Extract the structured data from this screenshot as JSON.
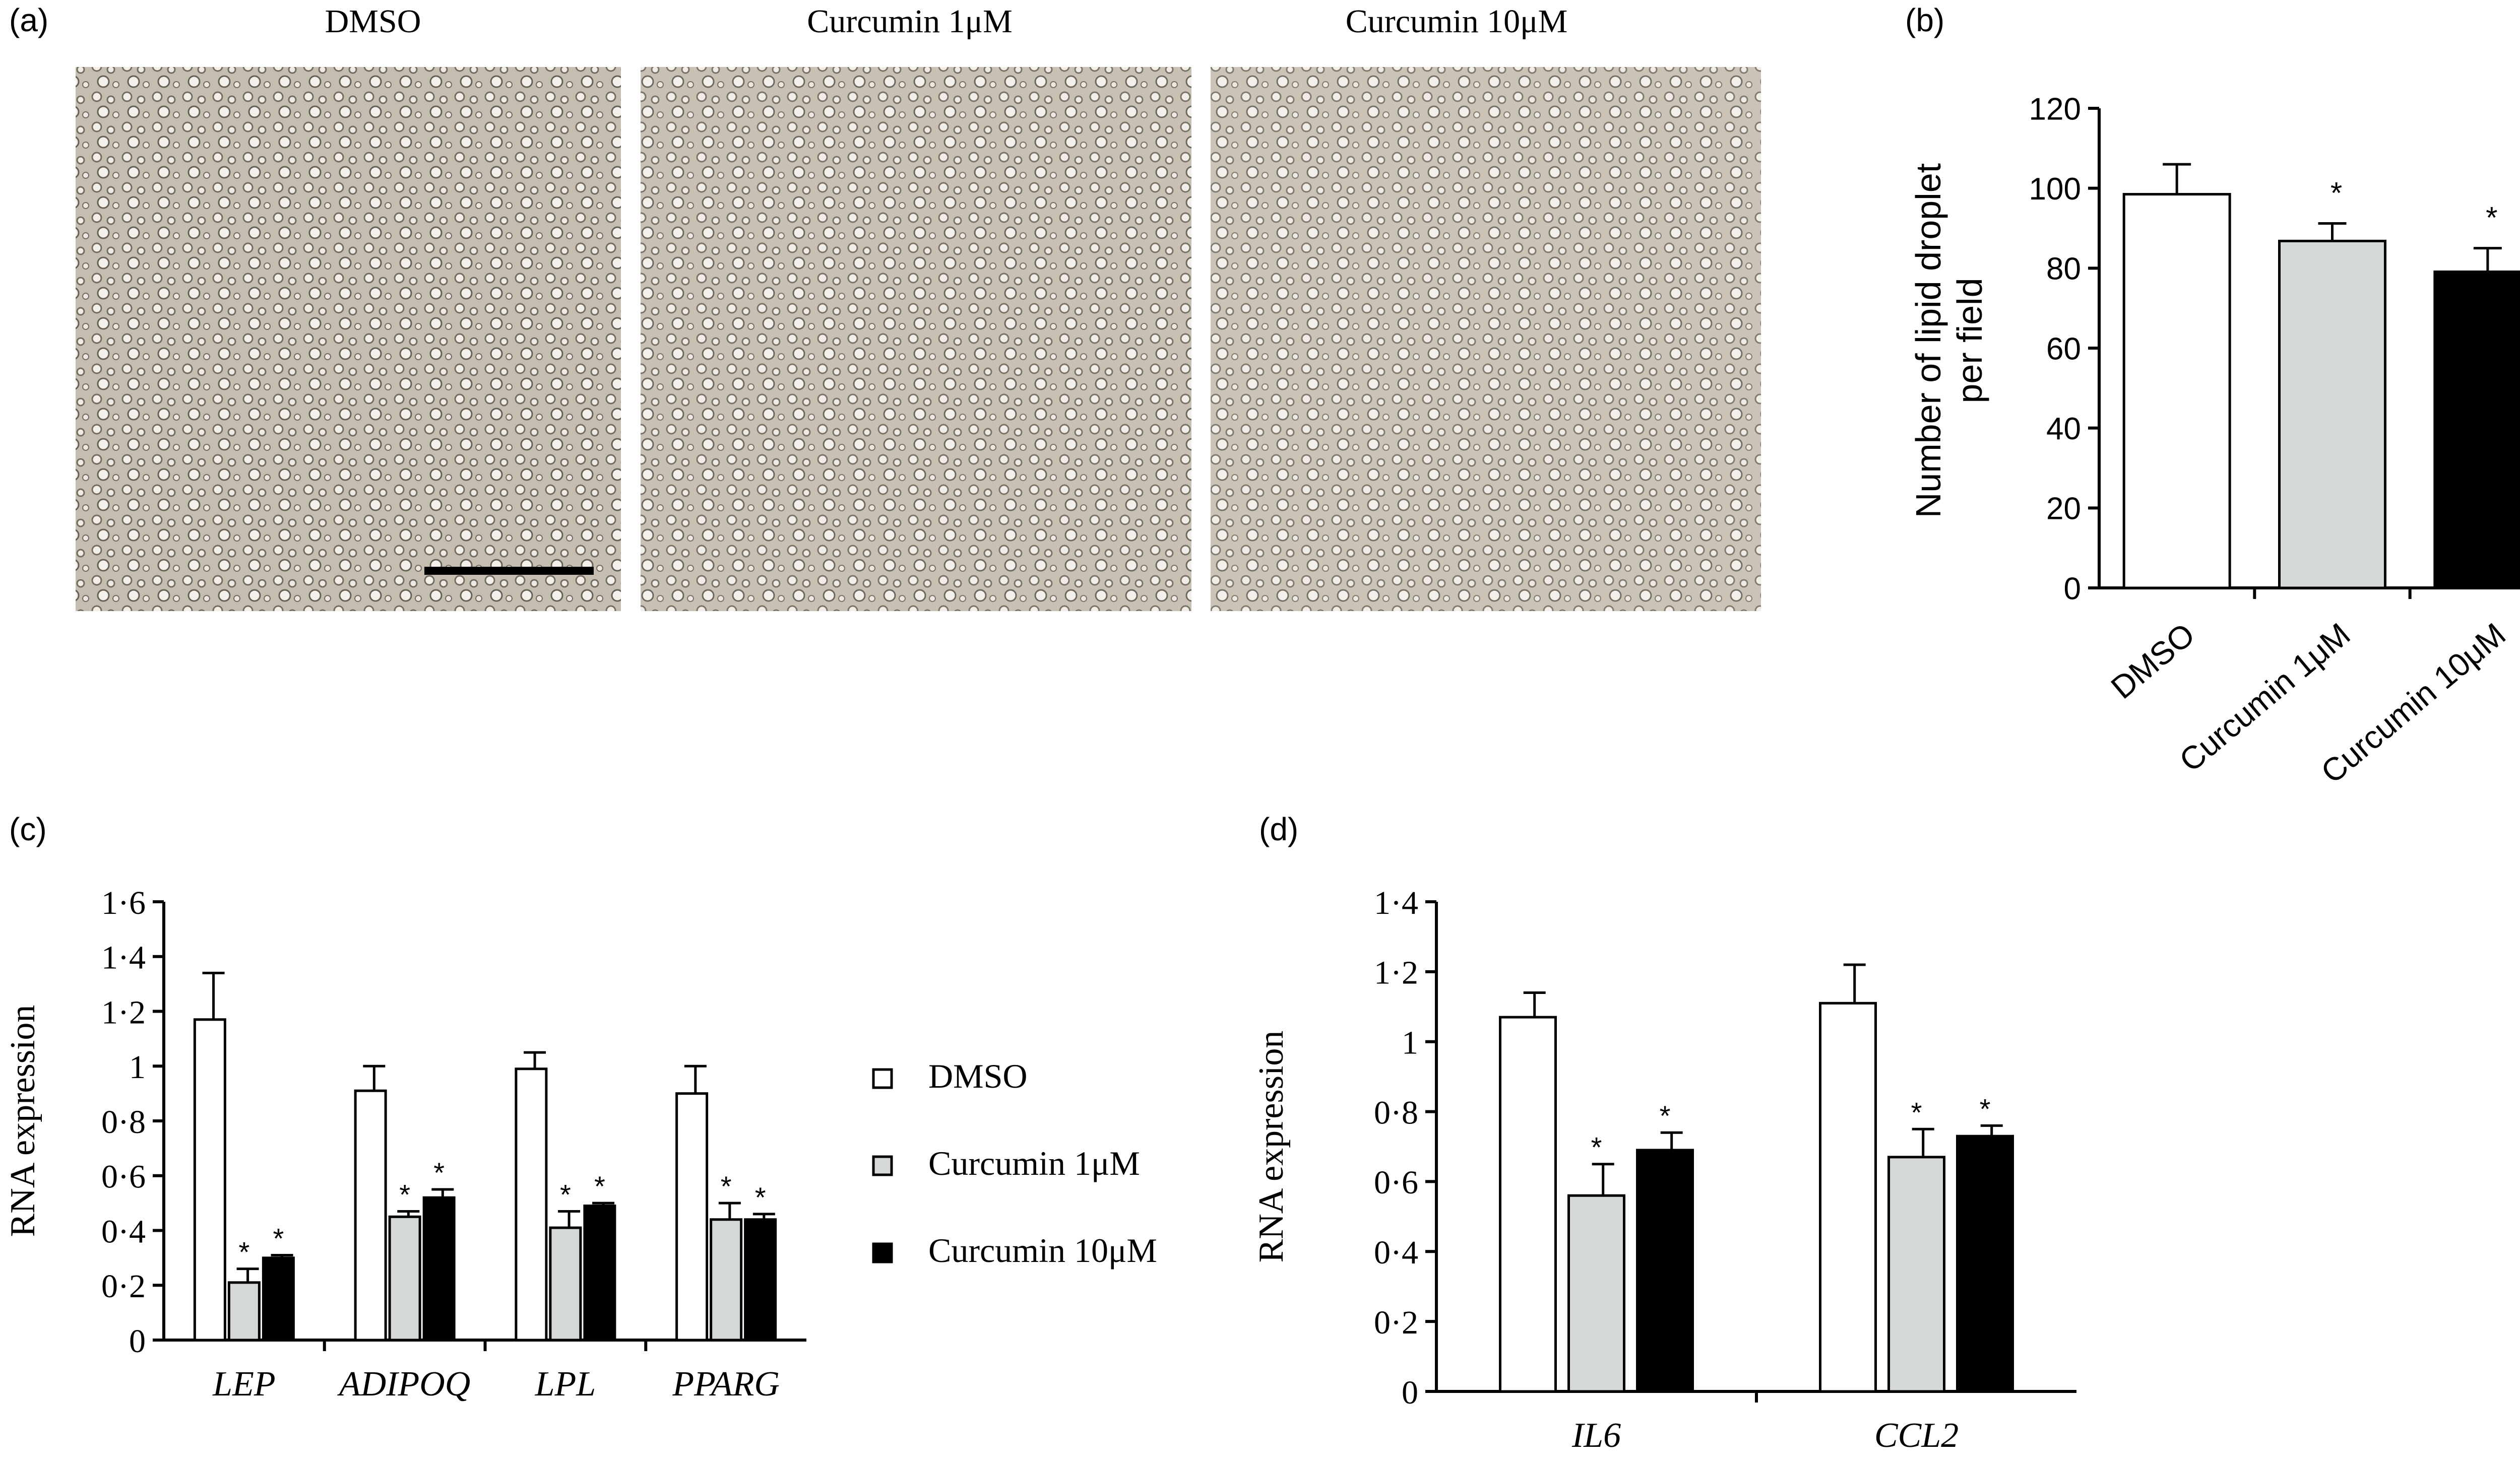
{
  "panel_labels": {
    "a": "(a)",
    "b": "(b)",
    "c": "(c)",
    "d": "(d)"
  },
  "micrographs": {
    "titles": [
      "DMSO",
      "Curcumin 1μM",
      "Curcumin 10μM"
    ],
    "scale_bar": "scale bar"
  },
  "colors": {
    "DMSO": "#ffffff",
    "Curcumin 1μM": "#d4d8d6",
    "Curcumin 10μM": "#000000"
  },
  "chart_data": [
    {
      "id": "b",
      "type": "bar",
      "categories": [
        "DMSO",
        "Curcumin 1μM",
        "Curcumin 10μM"
      ],
      "values": [
        98.5,
        86.8,
        79.1
      ],
      "errors": [
        7.5,
        4.4,
        5.9
      ],
      "significance": [
        "",
        "*",
        "*"
      ],
      "ylabel": "Number of lipid droplet\nper field",
      "ylim": [
        0,
        120
      ],
      "yticks": [
        "0",
        "20",
        "40",
        "60",
        "80",
        "100",
        "120"
      ]
    },
    {
      "id": "c",
      "type": "bar",
      "categories": [
        "LEP",
        "ADIPOQ",
        "LPL",
        "PPARG"
      ],
      "series": [
        {
          "name": "DMSO",
          "values": [
            1.17,
            0.91,
            0.99,
            0.9
          ],
          "errors": [
            0.17,
            0.09,
            0.06,
            0.1
          ],
          "significance": [
            "",
            "",
            "",
            ""
          ]
        },
        {
          "name": "Curcumin 1μM",
          "values": [
            0.21,
            0.45,
            0.41,
            0.44
          ],
          "errors": [
            0.05,
            0.02,
            0.06,
            0.06
          ],
          "significance": [
            "*",
            "*",
            "*",
            "*"
          ]
        },
        {
          "name": "Curcumin 10μM",
          "values": [
            0.3,
            0.52,
            0.49,
            0.44
          ],
          "errors": [
            0.01,
            0.03,
            0.01,
            0.02
          ],
          "significance": [
            "*",
            "*",
            "*",
            "*"
          ]
        }
      ],
      "ylabel": "RNA expression",
      "ylim": [
        0,
        1.6
      ],
      "yticks": [
        "0",
        "0·2",
        "0·4",
        "0·6",
        "0·8",
        "1",
        "1·2",
        "1·4",
        "1·6"
      ],
      "legend": [
        "DMSO",
        "Curcumin 1μM",
        "Curcumin 10μM"
      ]
    },
    {
      "id": "d",
      "type": "bar",
      "categories": [
        "IL6",
        "CCL2"
      ],
      "series": [
        {
          "name": "DMSO",
          "values": [
            1.07,
            1.11
          ],
          "errors": [
            0.07,
            0.11
          ],
          "significance": [
            "",
            ""
          ]
        },
        {
          "name": "Curcumin 1μM",
          "values": [
            0.56,
            0.67
          ],
          "errors": [
            0.09,
            0.08
          ],
          "significance": [
            "*",
            "*"
          ]
        },
        {
          "name": "Curcumin 10μM",
          "values": [
            0.69,
            0.73
          ],
          "errors": [
            0.05,
            0.03
          ],
          "significance": [
            "*",
            "*"
          ]
        }
      ],
      "ylabel": "RNA expression",
      "ylim": [
        0,
        1.4
      ],
      "yticks": [
        "0",
        "0·2",
        "0·4",
        "0·6",
        "0·8",
        "1",
        "1·2",
        "1·4"
      ]
    }
  ]
}
